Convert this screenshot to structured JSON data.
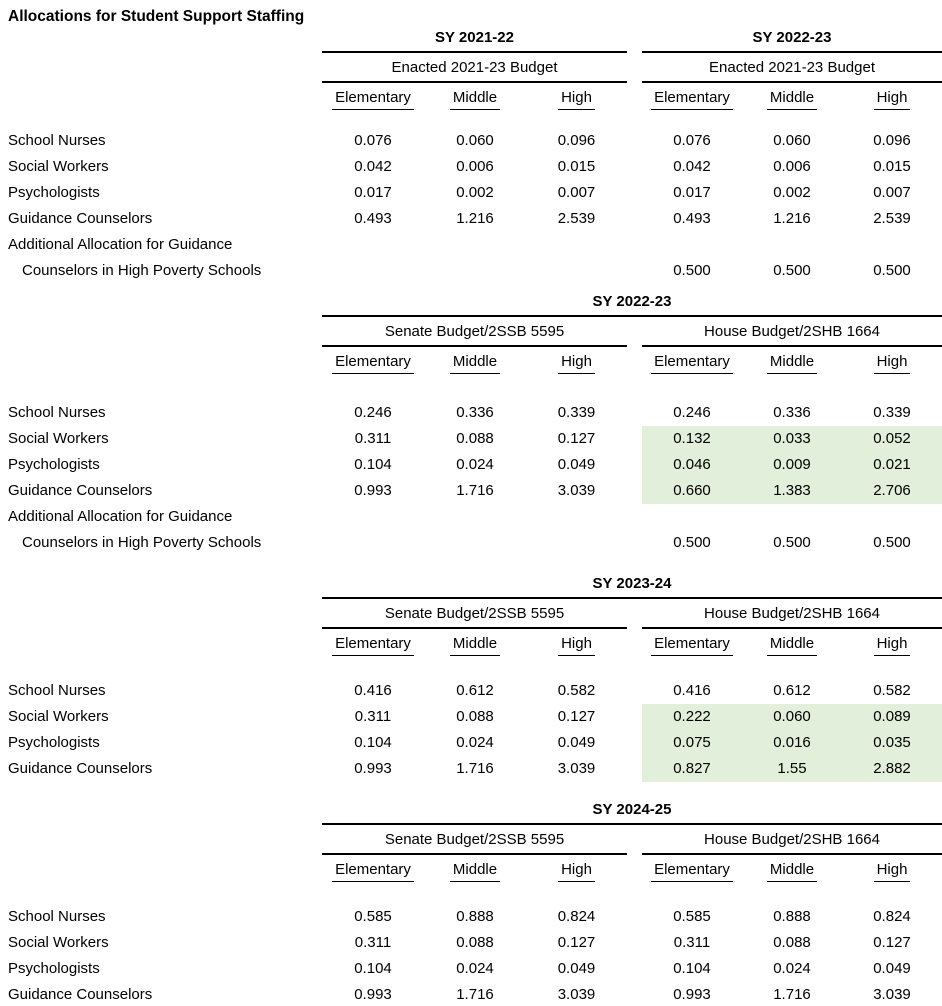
{
  "title": "Allocations for Student Support Staffing",
  "colors": {
    "highlight": "#e2efda",
    "rule": "#000000",
    "text": "#000000",
    "background": "#ffffff"
  },
  "column_headers": [
    "Elementary",
    "Middle",
    "High"
  ],
  "row_labels": [
    "School Nurses",
    "Social Workers",
    "Psychologists",
    "Guidance Counselors"
  ],
  "additional_label": {
    "line1": "Additional Allocation for Guidance",
    "line2": "Counselors in High Poverty Schools"
  },
  "sections": [
    {
      "left": {
        "sy_title": "SY 2021-22",
        "budget_title": "Enacted 2021-23 Budget",
        "rows": [
          [
            "0.076",
            "0.060",
            "0.096"
          ],
          [
            "0.042",
            "0.006",
            "0.015"
          ],
          [
            "0.017",
            "0.002",
            "0.007"
          ],
          [
            "0.493",
            "1.216",
            "2.539"
          ]
        ],
        "additional": [
          "",
          "",
          ""
        ]
      },
      "right": {
        "sy_title": "SY 2022-23",
        "budget_title": "Enacted 2021-23 Budget",
        "rows": [
          [
            "0.076",
            "0.060",
            "0.096"
          ],
          [
            "0.042",
            "0.006",
            "0.015"
          ],
          [
            "0.017",
            "0.002",
            "0.007"
          ],
          [
            "0.493",
            "1.216",
            "2.539"
          ]
        ],
        "additional": [
          "0.500",
          "0.500",
          "0.500"
        ]
      }
    },
    {
      "sy_title": "SY 2022-23",
      "left": {
        "budget_title": "Senate Budget/2SSB 5595",
        "rows": [
          [
            "0.246",
            "0.336",
            "0.339"
          ],
          [
            "0.311",
            "0.088",
            "0.127"
          ],
          [
            "0.104",
            "0.024",
            "0.049"
          ],
          [
            "0.993",
            "1.716",
            "3.039"
          ]
        ],
        "additional": [
          "",
          "",
          ""
        ]
      },
      "right": {
        "budget_title": "House Budget/2SHB 1664",
        "highlighted_rows": [
          1,
          2,
          3
        ],
        "rows": [
          [
            "0.246",
            "0.336",
            "0.339"
          ],
          [
            "0.132",
            "0.033",
            "0.052"
          ],
          [
            "0.046",
            "0.009",
            "0.021"
          ],
          [
            "0.660",
            "1.383",
            "2.706"
          ]
        ],
        "additional": [
          "0.500",
          "0.500",
          "0.500"
        ]
      }
    },
    {
      "sy_title": "SY 2023-24",
      "left": {
        "budget_title": "Senate Budget/2SSB 5595",
        "rows": [
          [
            "0.416",
            "0.612",
            "0.582"
          ],
          [
            "0.311",
            "0.088",
            "0.127"
          ],
          [
            "0.104",
            "0.024",
            "0.049"
          ],
          [
            "0.993",
            "1.716",
            "3.039"
          ]
        ]
      },
      "right": {
        "budget_title": "House Budget/2SHB 1664",
        "highlighted_rows": [
          1,
          2,
          3
        ],
        "rows": [
          [
            "0.416",
            "0.612",
            "0.582"
          ],
          [
            "0.222",
            "0.060",
            "0.089"
          ],
          [
            "0.075",
            "0.016",
            "0.035"
          ],
          [
            "0.827",
            "1.55",
            "2.882"
          ]
        ]
      }
    },
    {
      "sy_title": "SY 2024-25",
      "left": {
        "budget_title": "Senate Budget/2SSB 5595",
        "rows": [
          [
            "0.585",
            "0.888",
            "0.824"
          ],
          [
            "0.311",
            "0.088",
            "0.127"
          ],
          [
            "0.104",
            "0.024",
            "0.049"
          ],
          [
            "0.993",
            "1.716",
            "3.039"
          ]
        ]
      },
      "right": {
        "budget_title": "House Budget/2SHB 1664",
        "rows": [
          [
            "0.585",
            "0.888",
            "0.824"
          ],
          [
            "0.311",
            "0.088",
            "0.127"
          ],
          [
            "0.104",
            "0.024",
            "0.049"
          ],
          [
            "0.993",
            "1.716",
            "3.039"
          ]
        ]
      }
    }
  ]
}
